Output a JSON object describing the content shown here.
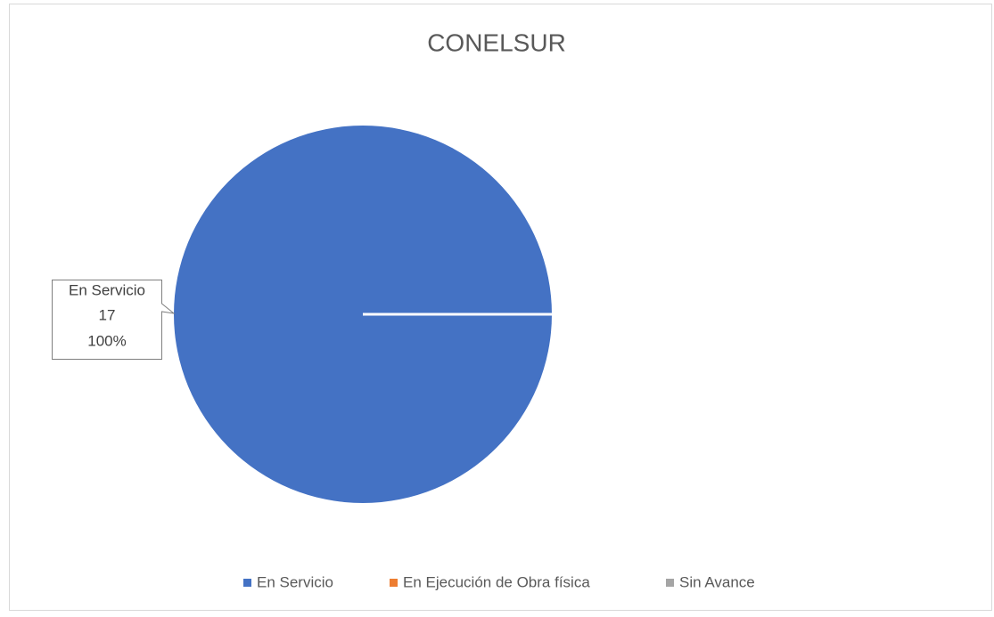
{
  "chart_data": {
    "type": "pie",
    "title": "CONELSUR",
    "categories": [
      "En Servicio",
      "En Ejecución de Obra física",
      "Sin Avance"
    ],
    "values": [
      17,
      0,
      0
    ],
    "percent_labels": [
      "100%",
      null,
      null
    ],
    "colors": [
      "#4472c4",
      "#ed7d31",
      "#a5a5a5"
    ],
    "legend": "bottom"
  }
}
